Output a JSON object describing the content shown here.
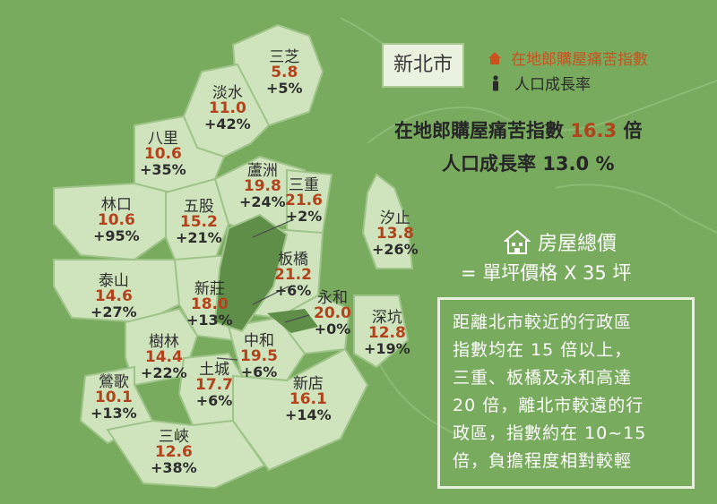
{
  "title": "新北市",
  "legend": [
    {
      "icon": "house-icon",
      "label": "在地郎購屋痛苦指數",
      "color": "#c9521f"
    },
    {
      "icon": "person-icon",
      "label": "人口成長率",
      "color": "#2a2a2a"
    }
  ],
  "summary": {
    "pain_label": "在地郎購屋痛苦指數",
    "pain_value": "16.3",
    "pain_unit": "倍",
    "growth_label": "人口成長率",
    "growth_value": "13.0",
    "growth_unit": "%"
  },
  "house_price": {
    "title": "房屋總價",
    "formula": "= 單坪價格 X 35 坪"
  },
  "note": [
    "距離北市較近的行政區",
    "指數均在 15 倍以上，",
    "三重、板橋及永和高達",
    "20 倍，離北市較遠的行",
    "政區，指數約在 10~15",
    "倍，負擔程度相對較輕"
  ],
  "districts": [
    {
      "name": "三芝",
      "value": "5.8",
      "growth": "+5%"
    },
    {
      "name": "淡水",
      "value": "11.0",
      "growth": "+42%"
    },
    {
      "name": "八里",
      "value": "10.6",
      "growth": "+35%"
    },
    {
      "name": "蘆洲",
      "value": "19.8",
      "growth": "+24%"
    },
    {
      "name": "三重",
      "value": "21.6",
      "growth": "+2%"
    },
    {
      "name": "林口",
      "value": "10.6",
      "growth": "+95%"
    },
    {
      "name": "五股",
      "value": "15.2",
      "growth": "+21%"
    },
    {
      "name": "汐止",
      "value": "13.8",
      "growth": "+26%"
    },
    {
      "name": "泰山",
      "value": "14.6",
      "growth": "+27%"
    },
    {
      "name": "新莊",
      "value": "18.0",
      "growth": "+13%"
    },
    {
      "name": "板橋",
      "value": "21.2",
      "growth": "+6%"
    },
    {
      "name": "永和",
      "value": "20.0",
      "growth": "+0%"
    },
    {
      "name": "深坑",
      "value": "12.8",
      "growth": "+19%"
    },
    {
      "name": "樹林",
      "value": "14.4",
      "growth": "+22%"
    },
    {
      "name": "中和",
      "value": "19.5",
      "growth": "+6%"
    },
    {
      "name": "土城",
      "value": "17.7",
      "growth": "+6%"
    },
    {
      "name": "新店",
      "value": "16.1",
      "growth": "+14%"
    },
    {
      "name": "鶯歌",
      "value": "10.1",
      "growth": "+13%"
    },
    {
      "name": "三峽",
      "value": "12.6",
      "growth": "+38%"
    }
  ]
}
